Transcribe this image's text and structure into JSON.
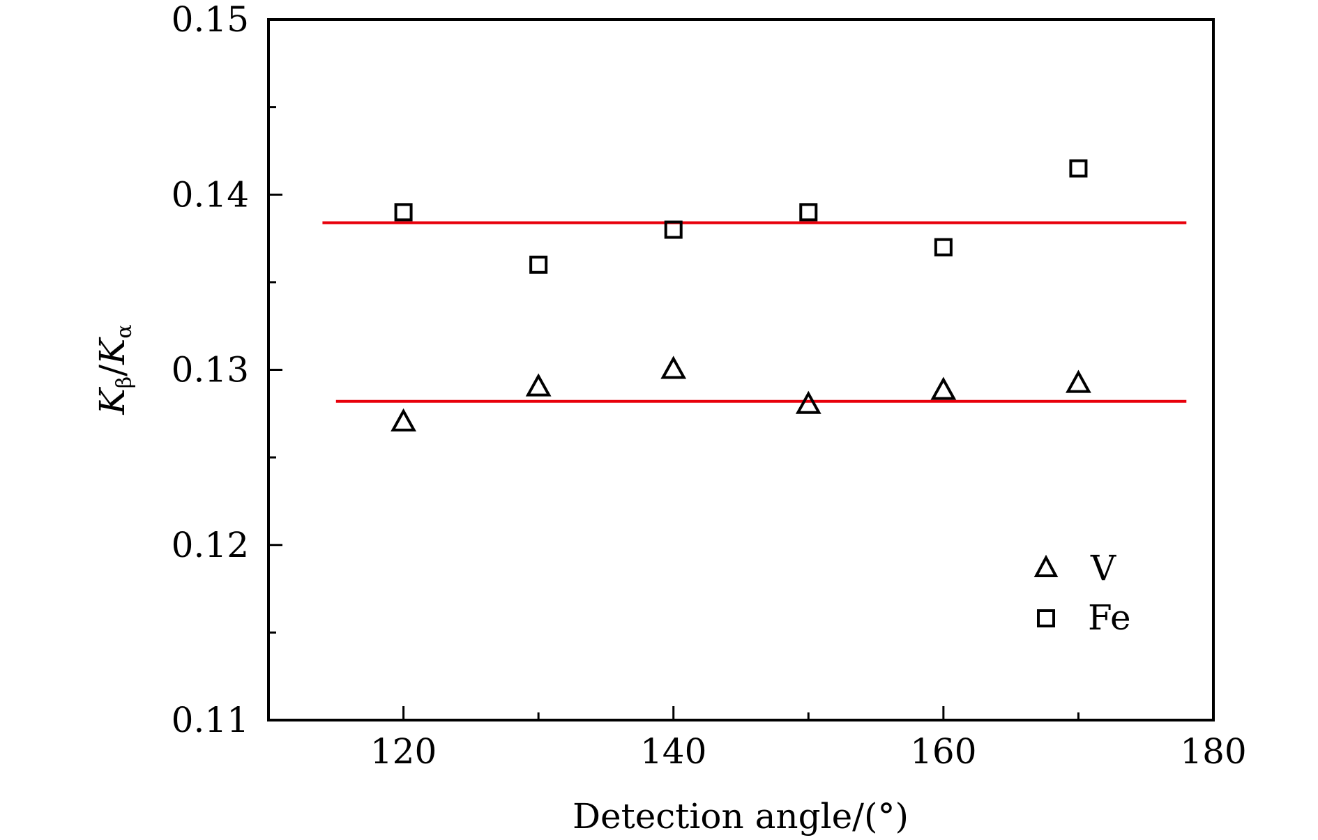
{
  "chart_data": {
    "type": "scatter",
    "xlabel": "Detection angle/(°)",
    "ylabel_main": "K",
    "ylabel_sub1": "β",
    "ylabel_slash": "/",
    "ylabel_sub2": "α",
    "xlim": [
      110,
      180
    ],
    "ylim": [
      0.11,
      0.15
    ],
    "x_ticks": [
      120,
      140,
      160,
      180
    ],
    "x_tick_labels": [
      "120",
      "140",
      "160",
      "180"
    ],
    "x_minor_ticks": [
      130,
      150,
      170
    ],
    "y_ticks": [
      0.11,
      0.12,
      0.13,
      0.14,
      0.15
    ],
    "y_tick_labels": [
      "0.11",
      "0.12",
      "0.13",
      "0.14",
      "0.15"
    ],
    "y_minor_ticks": [
      0.115,
      0.125,
      0.135,
      0.145
    ],
    "grid": false,
    "legend_position": "bottom-right",
    "series": [
      {
        "name": "V",
        "marker": "triangle",
        "x": [
          120,
          130,
          140,
          150,
          160,
          170
        ],
        "y": [
          0.127,
          0.129,
          0.13,
          0.128,
          0.1288,
          0.1292
        ]
      },
      {
        "name": "Fe",
        "marker": "square",
        "x": [
          120,
          130,
          140,
          150,
          160,
          170
        ],
        "y": [
          0.139,
          0.136,
          0.138,
          0.139,
          0.137,
          0.1415
        ]
      }
    ],
    "reference_lines": [
      {
        "x": [
          114,
          178
        ],
        "y": [
          0.1384,
          0.1384
        ],
        "color": "#e8000b"
      },
      {
        "x": [
          115,
          178
        ],
        "y": [
          0.1282,
          0.1282
        ],
        "color": "#e8000b"
      }
    ],
    "colors": {
      "axis": "#000000",
      "marker": "#000000",
      "line": "#e8000b"
    }
  }
}
